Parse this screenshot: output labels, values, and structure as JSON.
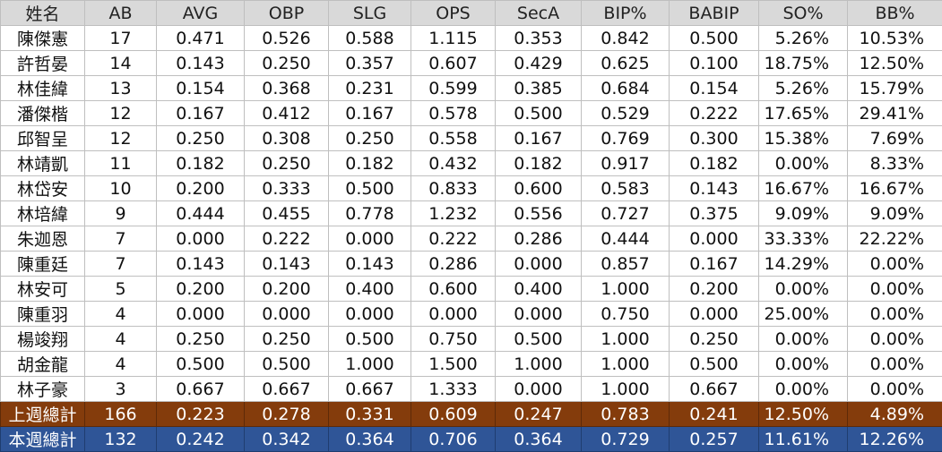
{
  "columns": [
    "姓名",
    "AB",
    "AVG",
    "OBP",
    "SLG",
    "OPS",
    "SecA",
    "BIP%",
    "BABIP",
    "SO%",
    "BB%"
  ],
  "rows": [
    [
      "陳傑憲",
      "17",
      "0.471",
      "0.526",
      "0.588",
      "1.115",
      "0.353",
      "0.842",
      "0.500",
      "5.26%",
      "10.53%"
    ],
    [
      "許哲晏",
      "14",
      "0.143",
      "0.250",
      "0.357",
      "0.607",
      "0.429",
      "0.625",
      "0.100",
      "18.75%",
      "12.50%"
    ],
    [
      "林佳緯",
      "13",
      "0.154",
      "0.368",
      "0.231",
      "0.599",
      "0.385",
      "0.684",
      "0.154",
      "5.26%",
      "15.79%"
    ],
    [
      "潘傑楷",
      "12",
      "0.167",
      "0.412",
      "0.167",
      "0.578",
      "0.500",
      "0.529",
      "0.222",
      "17.65%",
      "29.41%"
    ],
    [
      "邱智呈",
      "12",
      "0.250",
      "0.308",
      "0.250",
      "0.558",
      "0.167",
      "0.769",
      "0.300",
      "15.38%",
      "7.69%"
    ],
    [
      "林靖凱",
      "11",
      "0.182",
      "0.250",
      "0.182",
      "0.432",
      "0.182",
      "0.917",
      "0.182",
      "0.00%",
      "8.33%"
    ],
    [
      "林岱安",
      "10",
      "0.200",
      "0.333",
      "0.500",
      "0.833",
      "0.600",
      "0.583",
      "0.143",
      "16.67%",
      "16.67%"
    ],
    [
      "林培緯",
      "9",
      "0.444",
      "0.455",
      "0.778",
      "1.232",
      "0.556",
      "0.727",
      "0.375",
      "9.09%",
      "9.09%"
    ],
    [
      "朱迦恩",
      "7",
      "0.000",
      "0.222",
      "0.000",
      "0.222",
      "0.286",
      "0.444",
      "0.000",
      "33.33%",
      "22.22%"
    ],
    [
      "陳重廷",
      "7",
      "0.143",
      "0.143",
      "0.143",
      "0.286",
      "0.000",
      "0.857",
      "0.167",
      "14.29%",
      "0.00%"
    ],
    [
      "林安可",
      "5",
      "0.200",
      "0.200",
      "0.400",
      "0.600",
      "0.400",
      "1.000",
      "0.200",
      "0.00%",
      "0.00%"
    ],
    [
      "陳重羽",
      "4",
      "0.000",
      "0.000",
      "0.000",
      "0.000",
      "0.000",
      "0.750",
      "0.000",
      "25.00%",
      "0.00%"
    ],
    [
      "楊竣翔",
      "4",
      "0.250",
      "0.250",
      "0.500",
      "0.750",
      "0.500",
      "1.000",
      "0.250",
      "0.00%",
      "0.00%"
    ],
    [
      "胡金龍",
      "4",
      "0.500",
      "0.500",
      "1.000",
      "1.500",
      "1.000",
      "1.000",
      "0.500",
      "0.00%",
      "0.00%"
    ],
    [
      "林子豪",
      "3",
      "0.667",
      "0.667",
      "0.667",
      "1.333",
      "0.000",
      "1.000",
      "0.667",
      "0.00%",
      "0.00%"
    ]
  ],
  "totals": {
    "last_week": [
      "上週總計",
      "166",
      "0.223",
      "0.278",
      "0.331",
      "0.609",
      "0.247",
      "0.783",
      "0.241",
      "12.50%",
      "4.89%"
    ],
    "this_week": [
      "本週總計",
      "132",
      "0.242",
      "0.342",
      "0.364",
      "0.706",
      "0.364",
      "0.729",
      "0.257",
      "11.61%",
      "12.26%"
    ]
  },
  "colors": {
    "header_bg": "#d9d9d9",
    "last_week_bg": "#843c0c",
    "this_week_bg": "#2f5597"
  }
}
